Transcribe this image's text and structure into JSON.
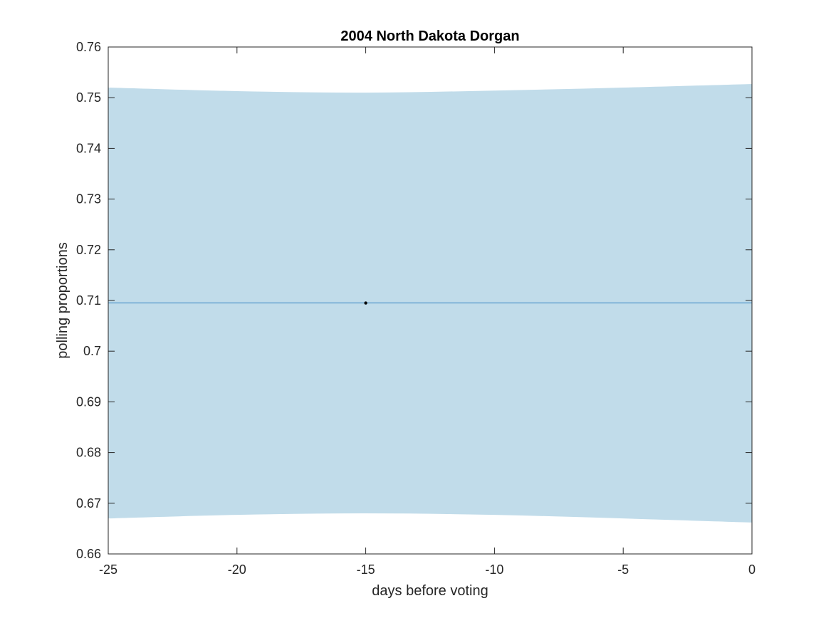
{
  "chart_data": {
    "type": "line",
    "title": "2004 North Dakota Dorgan",
    "xlabel": "days before voting",
    "ylabel": "polling proportions",
    "xlim": [
      -25,
      0
    ],
    "ylim": [
      0.66,
      0.76
    ],
    "x_ticks": [
      -25,
      -20,
      -15,
      -10,
      -5,
      0
    ],
    "x_tick_labels": [
      "-25",
      "-20",
      "-15",
      "-10",
      "-5",
      "0"
    ],
    "y_ticks": [
      0.66,
      0.67,
      0.68,
      0.69,
      0.7,
      0.71,
      0.72,
      0.73,
      0.74,
      0.75,
      0.76
    ],
    "y_tick_labels": [
      "0.66",
      "0.67",
      "0.68",
      "0.69",
      "0.7",
      "0.71",
      "0.72",
      "0.73",
      "0.74",
      "0.75",
      "0.76"
    ],
    "grid": false,
    "series": [
      {
        "kind": "line",
        "color": "#2f7fc1",
        "x": [
          -25,
          0
        ],
        "y": [
          0.7095,
          0.7095
        ]
      },
      {
        "kind": "band",
        "color": "#c1dcea",
        "x": [
          -25,
          -20,
          -15,
          -10,
          -5,
          0
        ],
        "upper": [
          0.752,
          0.7513,
          0.751,
          0.7514,
          0.752,
          0.7527
        ],
        "lower": [
          0.667,
          0.6677,
          0.668,
          0.6677,
          0.667,
          0.6662
        ]
      },
      {
        "kind": "scatter",
        "color": "#000000",
        "x": [
          -15
        ],
        "y": [
          0.7095
        ]
      }
    ]
  }
}
